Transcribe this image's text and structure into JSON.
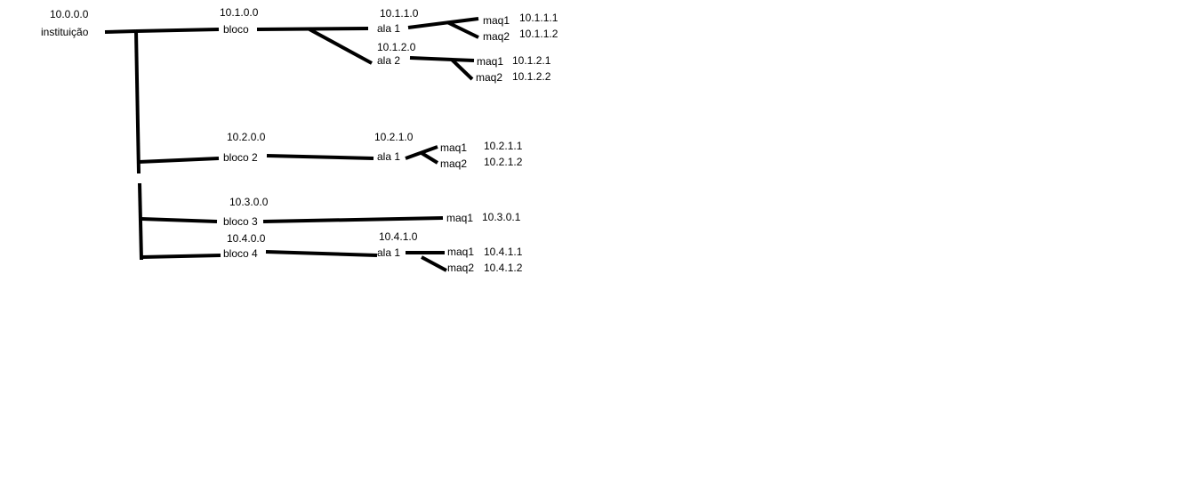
{
  "diagram": {
    "root": {
      "name": "instituição",
      "ip": "10.0.0.0"
    },
    "blocks": [
      {
        "name": "bloco",
        "ip": "10.1.0.0",
        "wings": [
          {
            "name": "ala 1",
            "ip": "10.1.1.0",
            "machines": [
              {
                "name": "maq1",
                "ip": "10.1.1.1"
              },
              {
                "name": "maq2",
                "ip": "10.1.1.2"
              }
            ]
          },
          {
            "name": "ala 2",
            "ip": "10.1.2.0",
            "machines": [
              {
                "name": "maq1",
                "ip": "10.1.2.1"
              },
              {
                "name": "maq2",
                "ip": "10.1.2.2"
              }
            ]
          }
        ]
      },
      {
        "name": "bloco 2",
        "ip": "10.2.0.0",
        "wings": [
          {
            "name": "ala 1",
            "ip": "10.2.1.0",
            "machines": [
              {
                "name": "maq1",
                "ip": "10.2.1.1"
              },
              {
                "name": "maq2",
                "ip": "10.2.1.2"
              }
            ]
          }
        ]
      },
      {
        "name": "bloco 3",
        "ip": "10.3.0.0",
        "machines": [
          {
            "name": "maq1",
            "ip": "10.3.0.1"
          }
        ]
      },
      {
        "name": "bloco 4",
        "ip": "10.4.0.0",
        "wings": [
          {
            "name": "ala 1",
            "ip": "10.4.1.0",
            "machines": [
              {
                "name": "maq1",
                "ip": "10.4.1.1"
              },
              {
                "name": "maq2",
                "ip": "10.4.1.2"
              }
            ]
          }
        ]
      }
    ]
  }
}
